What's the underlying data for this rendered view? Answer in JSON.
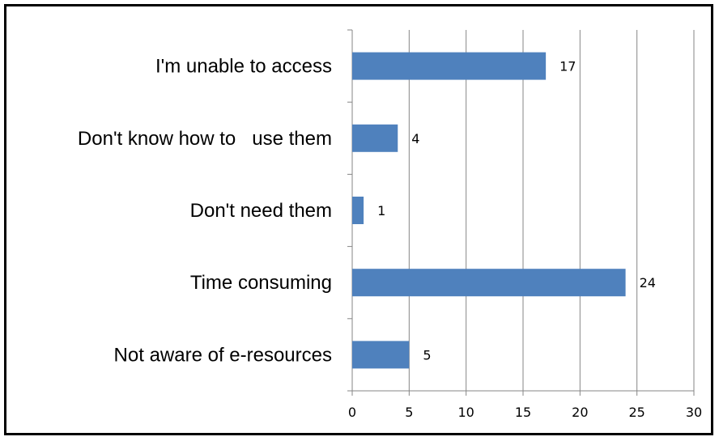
{
  "chart_data": {
    "type": "bar",
    "orientation": "horizontal",
    "categories": [
      "I'm unable to access",
      "Don't know how to   use them",
      "Don't need them",
      "Time consuming",
      "Not aware of e-resources"
    ],
    "values": [
      17,
      4,
      1,
      24,
      5
    ],
    "xlim": [
      0,
      30
    ],
    "xticks": [
      0,
      5,
      10,
      15,
      20,
      25,
      30
    ],
    "title": "",
    "xlabel": "",
    "ylabel": "",
    "grid": "vertical",
    "legend": "none",
    "bar_color": "#4f81bd",
    "grid_color": "#868686"
  }
}
